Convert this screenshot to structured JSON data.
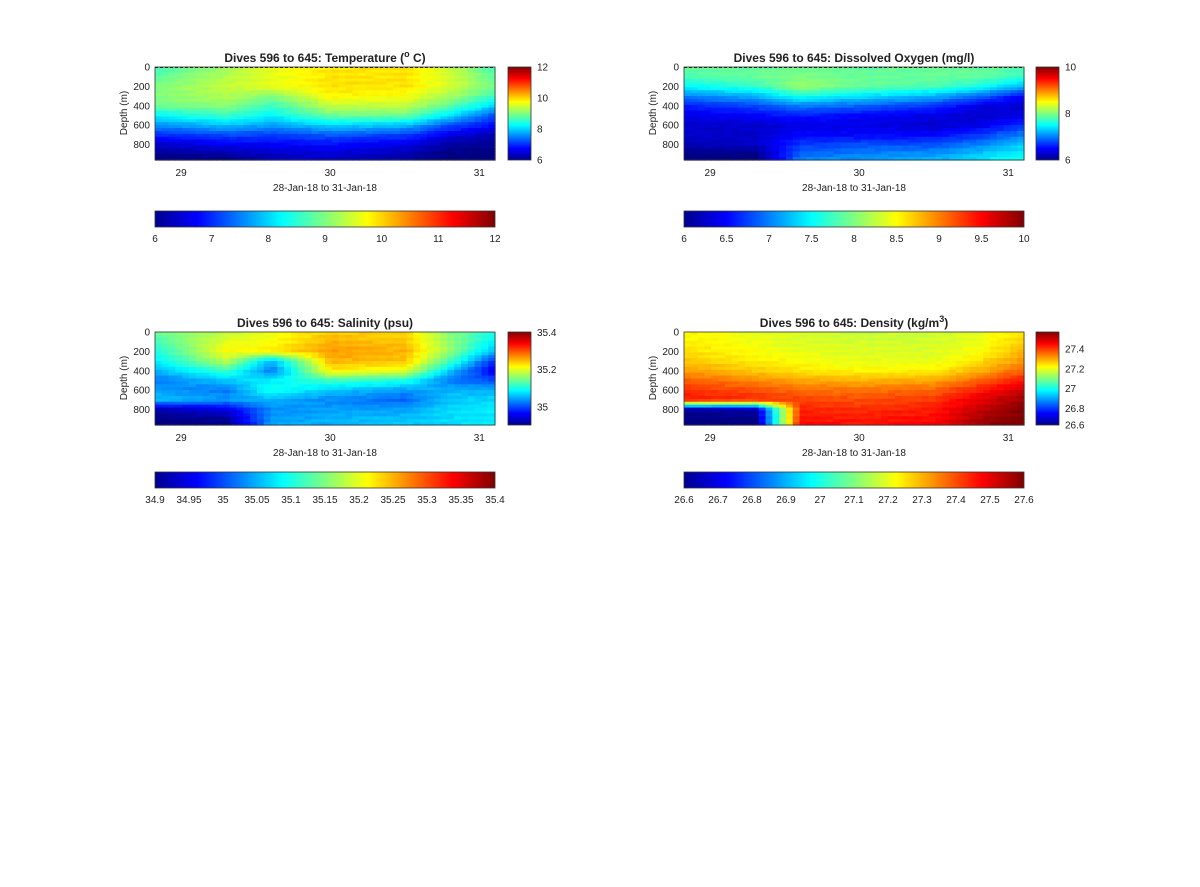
{
  "figure": {
    "background": "#ffffff",
    "colormap": "jet"
  },
  "chart_data": [
    {
      "type": "heatmap",
      "title": "Dives 596 to 645: Temperature (",
      "title_sup": "o",
      "title_after": " C)",
      "xlabel": "28-Jan-18 to 31-Jan-18",
      "ylabel": "Depth (m)",
      "x_ticks": [
        "29",
        "30",
        "31"
      ],
      "x_tick_values": [
        29,
        30,
        31
      ],
      "xlim": [
        28.82,
        31.1
      ],
      "y_ticks": [
        "0",
        "200",
        "400",
        "600",
        "800"
      ],
      "y_tick_values": [
        0,
        200,
        400,
        600,
        800
      ],
      "ylim": [
        0,
        960
      ],
      "y_reversed": true,
      "clim": [
        6,
        12
      ],
      "side_colorbar_ticks": [
        "6",
        "8",
        "10",
        "12"
      ],
      "side_colorbar_values": [
        6,
        8,
        10,
        12
      ],
      "bottom_colorbar_ticks": [
        "6",
        "7",
        "8",
        "9",
        "10",
        "11",
        "12"
      ],
      "bottom_colorbar_values": [
        6,
        7,
        8,
        9,
        10,
        11,
        12
      ],
      "dashed_surface_line": true,
      "field": {
        "x": [
          28.82,
          29.3,
          29.6,
          30.0,
          30.5,
          30.8,
          31.1
        ],
        "depths": [
          0,
          100,
          200,
          300,
          400,
          500,
          600,
          700,
          800,
          900,
          960
        ],
        "values": [
          [
            8.6,
            9.2,
            9.6,
            9.9,
            9.9,
            9.4,
            8.6
          ],
          [
            8.8,
            9.3,
            9.6,
            9.9,
            9.9,
            9.5,
            8.8
          ],
          [
            9.0,
            9.4,
            9.6,
            9.9,
            9.9,
            9.5,
            8.9
          ],
          [
            9.0,
            9.3,
            9.0,
            9.8,
            9.7,
            9.2,
            8.6
          ],
          [
            8.9,
            9.1,
            8.6,
            9.4,
            9.4,
            8.8,
            8.0
          ],
          [
            8.2,
            8.6,
            8.2,
            8.9,
            8.9,
            8.1,
            7.2
          ],
          [
            7.6,
            7.9,
            7.7,
            8.0,
            7.9,
            7.2,
            6.8
          ],
          [
            7.0,
            7.2,
            7.1,
            7.3,
            7.1,
            6.6,
            6.3
          ],
          [
            6.4,
            6.7,
            6.7,
            6.8,
            6.6,
            6.2,
            6.1
          ],
          [
            6.1,
            6.2,
            6.4,
            6.5,
            6.3,
            6.0,
            6.0
          ],
          [
            6.0,
            6.0,
            6.3,
            6.4,
            6.2,
            6.0,
            6.0
          ]
        ]
      }
    },
    {
      "type": "heatmap",
      "title": "Dives 596 to 645: Dissolved Oxygen (mg/l)",
      "title_sup": "",
      "title_after": "",
      "xlabel": "28-Jan-18 to 31-Jan-18",
      "ylabel": "Depth (m)",
      "x_ticks": [
        "29",
        "30",
        "31"
      ],
      "x_tick_values": [
        29,
        30,
        31
      ],
      "xlim": [
        28.82,
        31.1
      ],
      "y_ticks": [
        "0",
        "200",
        "400",
        "600",
        "800"
      ],
      "y_tick_values": [
        0,
        200,
        400,
        600,
        800
      ],
      "ylim": [
        0,
        960
      ],
      "y_reversed": true,
      "clim": [
        6,
        10
      ],
      "side_colorbar_ticks": [
        "6",
        "8",
        "10"
      ],
      "side_colorbar_values": [
        6,
        8,
        10
      ],
      "bottom_colorbar_ticks": [
        "6",
        "6.5",
        "7",
        "7.5",
        "8",
        "8.5",
        "9",
        "9.5",
        "10"
      ],
      "bottom_colorbar_values": [
        6,
        6.5,
        7,
        7.5,
        8,
        8.5,
        9,
        9.5,
        10
      ],
      "dashed_surface_line": true,
      "field": {
        "x": [
          28.82,
          29.3,
          29.6,
          30.0,
          30.5,
          30.8,
          31.1
        ],
        "depths": [
          0,
          100,
          200,
          300,
          400,
          500,
          600,
          700,
          800,
          900,
          960
        ],
        "values": [
          [
            7.9,
            7.9,
            7.9,
            7.9,
            7.9,
            7.9,
            7.8
          ],
          [
            7.8,
            7.9,
            8.0,
            7.9,
            7.9,
            7.9,
            7.7
          ],
          [
            7.5,
            7.7,
            8.1,
            7.9,
            7.8,
            7.6,
            7.2
          ],
          [
            7.0,
            7.2,
            7.6,
            7.4,
            7.2,
            6.9,
            6.5
          ],
          [
            6.6,
            6.8,
            7.0,
            6.9,
            6.7,
            6.4,
            6.3
          ],
          [
            6.4,
            6.5,
            6.6,
            6.5,
            6.4,
            6.3,
            6.4
          ],
          [
            6.3,
            6.3,
            6.4,
            6.4,
            6.3,
            6.4,
            6.7
          ],
          [
            6.3,
            6.3,
            6.5,
            6.5,
            6.5,
            6.7,
            7.0
          ],
          [
            6.2,
            6.3,
            6.7,
            6.8,
            6.8,
            7.0,
            7.3
          ],
          [
            6.0,
            6.0,
            6.9,
            7.0,
            7.1,
            7.3,
            7.5
          ],
          [
            6.0,
            6.0,
            7.0,
            7.1,
            7.2,
            7.4,
            7.6
          ]
        ]
      }
    },
    {
      "type": "heatmap",
      "title": "Dives 596 to 645: Salinity (psu)",
      "title_sup": "",
      "title_after": "",
      "xlabel": "28-Jan-18 to 31-Jan-18",
      "ylabel": "Depth (m)",
      "x_ticks": [
        "29",
        "30",
        "31"
      ],
      "x_tick_values": [
        29,
        30,
        31
      ],
      "xlim": [
        28.82,
        31.1
      ],
      "y_ticks": [
        "0",
        "200",
        "400",
        "600",
        "800"
      ],
      "y_tick_values": [
        0,
        200,
        400,
        600,
        800
      ],
      "ylim": [
        0,
        960
      ],
      "y_reversed": true,
      "clim": [
        34.9,
        35.4
      ],
      "side_colorbar_ticks": [
        "35",
        "35.2",
        "35.4"
      ],
      "side_colorbar_values": [
        35,
        35.2,
        35.4
      ],
      "bottom_colorbar_ticks": [
        "34.9",
        "34.95",
        "35",
        "35.05",
        "35.1",
        "35.15",
        "35.2",
        "35.25",
        "35.3",
        "35.35",
        "35.4"
      ],
      "bottom_colorbar_values": [
        34.9,
        34.95,
        35,
        35.05,
        35.1,
        35.15,
        35.2,
        35.25,
        35.3,
        35.35,
        35.4
      ],
      "dashed_surface_line": false,
      "field": {
        "x": [
          28.82,
          29.3,
          29.6,
          30.0,
          30.5,
          30.8,
          31.1
        ],
        "depths": [
          0,
          100,
          200,
          300,
          400,
          500,
          600,
          700,
          800,
          900,
          960
        ],
        "values": [
          [
            35.14,
            35.18,
            35.2,
            35.24,
            35.23,
            35.15,
            35.1
          ],
          [
            35.12,
            35.2,
            35.21,
            35.25,
            35.24,
            35.16,
            35.08
          ],
          [
            35.1,
            35.21,
            35.22,
            35.26,
            35.25,
            35.16,
            35.05
          ],
          [
            35.08,
            35.18,
            35.05,
            35.25,
            35.24,
            35.12,
            34.98
          ],
          [
            35.05,
            35.12,
            35.02,
            35.22,
            35.2,
            35.06,
            34.95
          ],
          [
            35.02,
            35.06,
            35.08,
            35.12,
            35.1,
            35.02,
            35.0
          ],
          [
            35.04,
            35.02,
            35.1,
            35.06,
            35.04,
            35.05,
            35.05
          ],
          [
            35.06,
            35.04,
            35.05,
            35.03,
            35.01,
            35.06,
            35.07
          ],
          [
            34.92,
            34.95,
            35.03,
            35.04,
            35.04,
            35.07,
            35.08
          ],
          [
            34.9,
            34.91,
            35.04,
            35.05,
            35.06,
            35.07,
            35.08
          ],
          [
            34.9,
            34.9,
            35.04,
            35.05,
            35.06,
            35.07,
            35.08
          ]
        ]
      }
    },
    {
      "type": "heatmap",
      "title": "Dives 596 to 645: Density (kg/m",
      "title_sup": "3",
      "title_after": ")",
      "xlabel": "28-Jan-18 to 31-Jan-18",
      "ylabel": "Depth (m)",
      "x_ticks": [
        "29",
        "30",
        "31"
      ],
      "x_tick_values": [
        29,
        30,
        31
      ],
      "xlim": [
        28.82,
        31.1
      ],
      "y_ticks": [
        "0",
        "200",
        "400",
        "600",
        "800"
      ],
      "y_tick_values": [
        0,
        200,
        400,
        600,
        800
      ],
      "ylim": [
        0,
        960
      ],
      "y_reversed": true,
      "clim": [
        26.6,
        27.6
      ],
      "side_colorbar_ticks": [
        "26.6",
        "26.8",
        "27",
        "27.2",
        "27.4"
      ],
      "side_colorbar_values": [
        26.6,
        26.8,
        27,
        27.2,
        27.4
      ],
      "bottom_colorbar_ticks": [
        "26.6",
        "26.7",
        "26.8",
        "26.9",
        "27",
        "27.1",
        "27.2",
        "27.3",
        "27.4",
        "27.5",
        "27.6"
      ],
      "bottom_colorbar_values": [
        26.6,
        26.7,
        26.8,
        26.9,
        27,
        27.1,
        27.2,
        27.3,
        27.4,
        27.5,
        27.6
      ],
      "dashed_surface_line": false,
      "field": {
        "x": [
          28.82,
          29.3,
          29.6,
          30.0,
          30.5,
          30.8,
          31.1
        ],
        "depths": [
          0,
          100,
          200,
          300,
          400,
          500,
          600,
          700,
          800,
          900,
          960
        ],
        "values": [
          [
            27.23,
            27.2,
            27.18,
            27.17,
            27.17,
            27.2,
            27.25
          ],
          [
            27.24,
            27.21,
            27.19,
            27.18,
            27.18,
            27.21,
            27.27
          ],
          [
            27.26,
            27.22,
            27.2,
            27.19,
            27.19,
            27.22,
            27.3
          ],
          [
            27.28,
            27.24,
            27.22,
            27.2,
            27.2,
            27.25,
            27.33
          ],
          [
            27.32,
            27.28,
            27.25,
            27.23,
            27.24,
            27.3,
            27.38
          ],
          [
            27.38,
            27.34,
            27.31,
            27.3,
            27.31,
            27.38,
            27.46
          ],
          [
            27.43,
            27.4,
            27.37,
            27.36,
            27.38,
            27.45,
            27.53
          ],
          [
            27.46,
            27.44,
            27.41,
            27.4,
            27.42,
            27.5,
            27.57
          ],
          [
            26.62,
            26.64,
            27.44,
            27.43,
            27.45,
            27.53,
            27.6
          ],
          [
            26.6,
            26.6,
            27.46,
            27.45,
            27.47,
            27.56,
            27.61
          ],
          [
            26.6,
            26.6,
            27.47,
            27.46,
            27.48,
            27.57,
            27.62
          ]
        ]
      }
    }
  ]
}
